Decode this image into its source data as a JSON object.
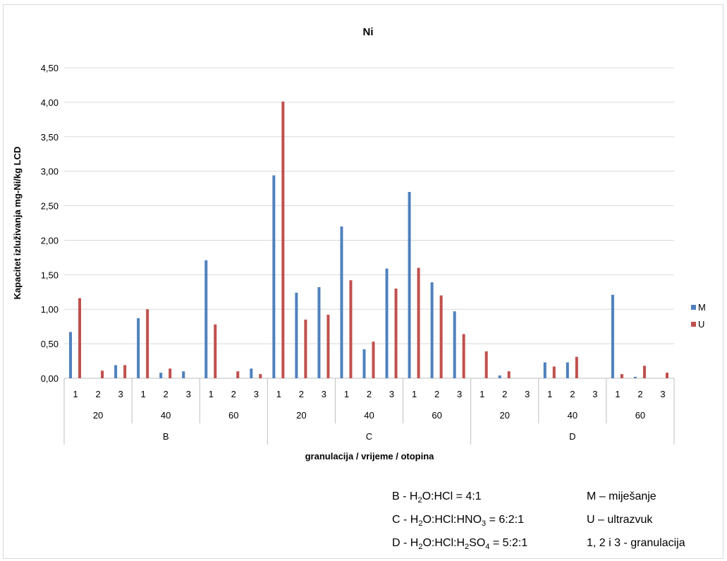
{
  "chart_data": {
    "type": "bar",
    "title": "Ni",
    "ylabel": "Kapacitet izluživanja mg-Ni/kg LCD",
    "xlabel": "granulacija / vrijeme  / otopina",
    "ylim": [
      0,
      4.5
    ],
    "yticks": [
      "0,00",
      "0,50",
      "1,00",
      "1,50",
      "2,00",
      "2,50",
      "3,00",
      "3,50",
      "4,00",
      "4,50"
    ],
    "grid": true,
    "legend_position": "right",
    "solutions": [
      "B",
      "C",
      "D"
    ],
    "times": [
      "20",
      "40",
      "60"
    ],
    "granulations": [
      "1",
      "2",
      "3"
    ],
    "series": [
      {
        "name": "M",
        "color": "#4f81bd",
        "values": [
          0.67,
          0.0,
          0.19,
          0.87,
          0.08,
          0.1,
          1.71,
          0.0,
          0.14,
          2.94,
          1.24,
          1.32,
          2.2,
          0.42,
          1.59,
          2.7,
          1.39,
          0.97,
          0.0,
          0.04,
          0.0,
          0.23,
          0.23,
          0.0,
          1.21,
          0.02,
          0.0
        ]
      },
      {
        "name": "U",
        "color": "#c0504d",
        "values": [
          1.16,
          0.11,
          0.19,
          1.0,
          0.14,
          0.0,
          0.78,
          0.1,
          0.06,
          4.01,
          0.85,
          0.92,
          1.42,
          0.53,
          1.3,
          1.6,
          1.2,
          0.64,
          0.39,
          0.1,
          0.0,
          0.17,
          0.31,
          0.0,
          0.06,
          0.18,
          0.08
        ]
      }
    ]
  },
  "notes": {
    "b_prefix": "B - H",
    "b_mid": "O:HCl  = 4:1",
    "c_prefix": "C - H",
    "c_mid": "O:HCl:HNO",
    "c_end": "  = 6:2:1",
    "d_prefix": "D - H",
    "d_mid": "O:HCl:H",
    "d_mid2": "SO",
    "d_end": "  = 5:2:1",
    "sub_2": "2",
    "sub_3": "3",
    "sub_4": "4",
    "m_note": "M – miješanje",
    "u_note": "U – ultrazvuk",
    "gran_note": "1, 2 i 3 - granulacija"
  }
}
